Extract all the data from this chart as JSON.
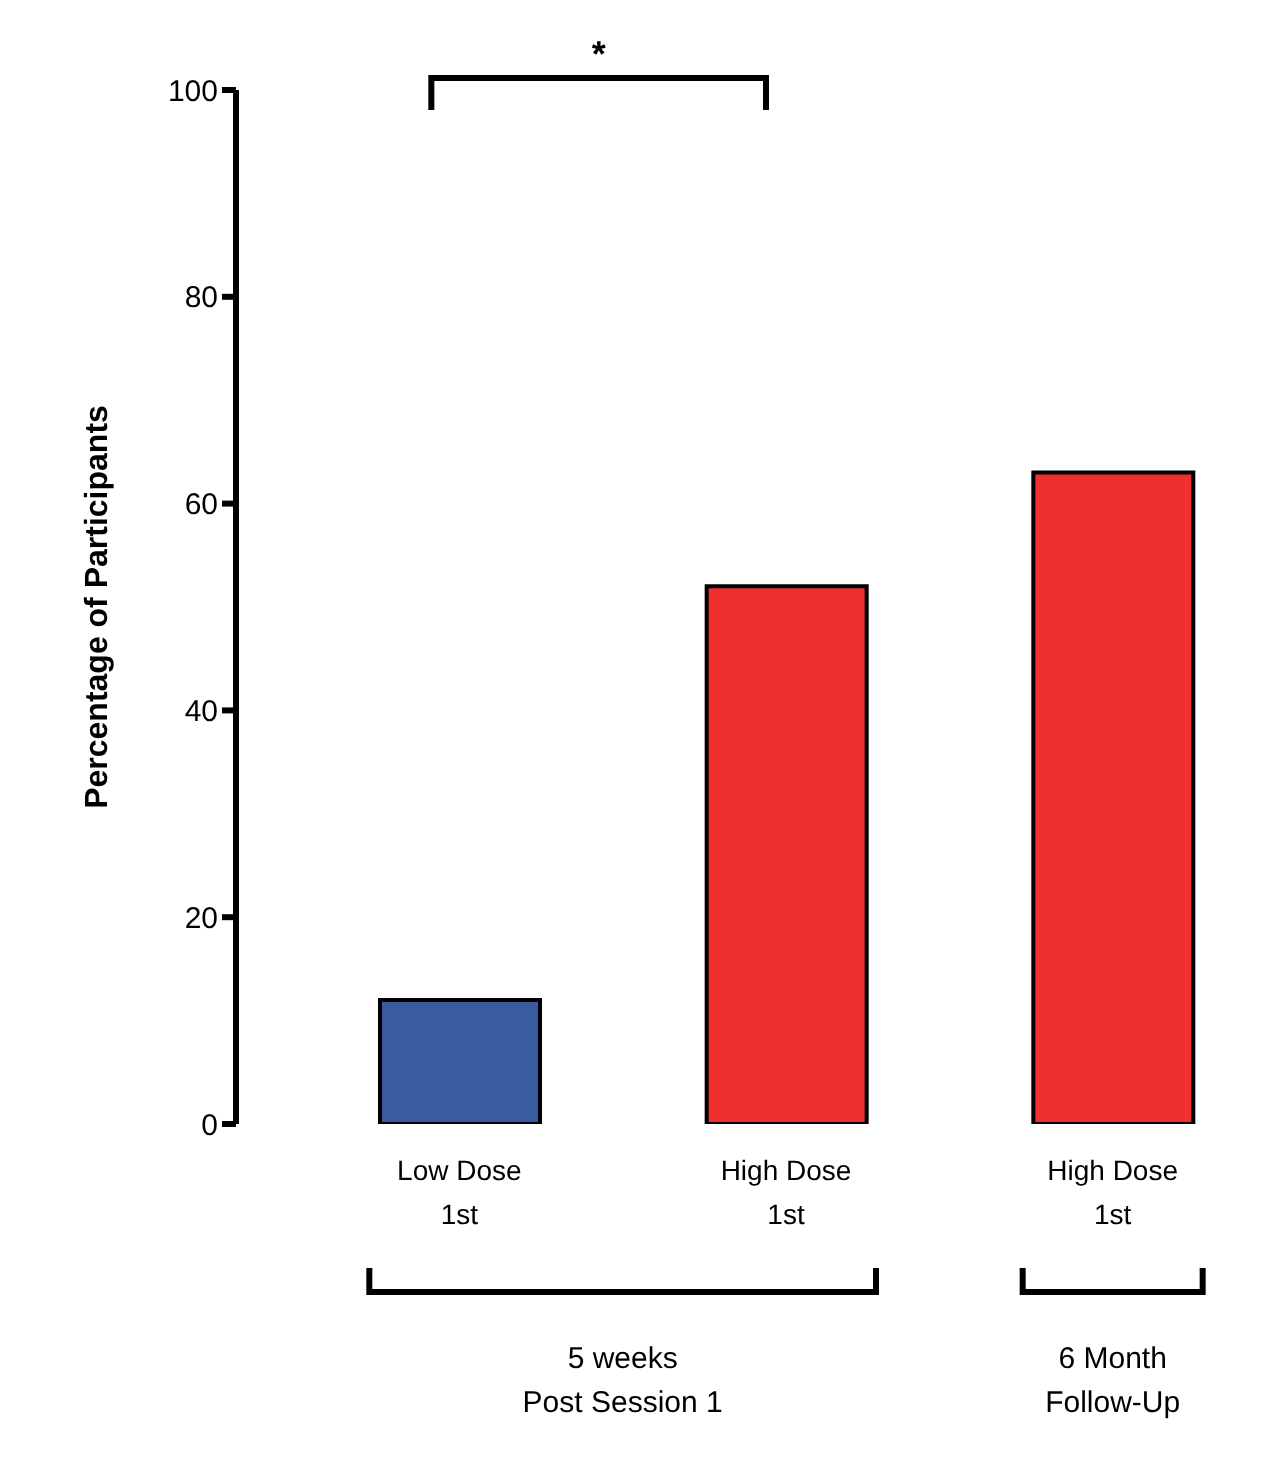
{
  "chart_data": {
    "type": "bar",
    "ylabel": "Percentage of Participants",
    "categories": [
      "Low Dose 1st",
      "High Dose 1st",
      "High Dose 1st"
    ],
    "values": [
      12,
      52,
      63
    ],
    "colors": [
      "#3a5ba0",
      "#f03030",
      "#f03030"
    ],
    "ylim": [
      0,
      100
    ],
    "yticks": [
      0,
      20,
      40,
      60,
      80,
      100
    ],
    "annotations": [
      "*",
      "5 weeks Post Session 1",
      "6 Month Follow-Up"
    ]
  }
}
